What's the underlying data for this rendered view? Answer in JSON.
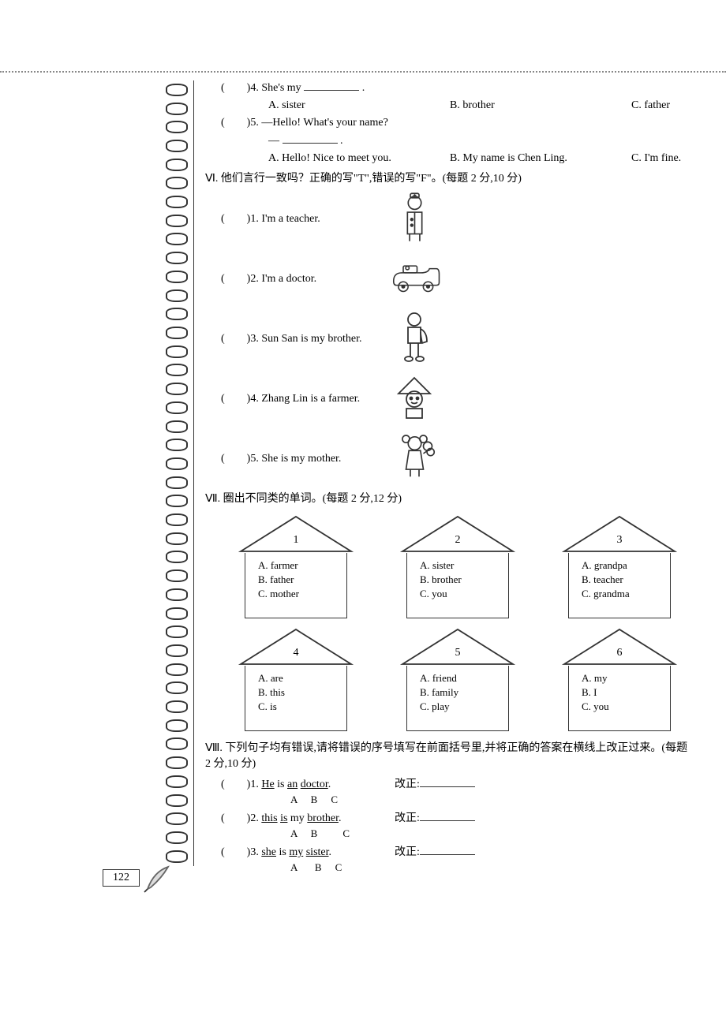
{
  "q4": {
    "prefix": "(　　)4. She's my ",
    "blank": true,
    "period": ".",
    "optA": "A. sister",
    "optB": "B. brother",
    "optC": "C. father"
  },
  "q5": {
    "line1": "(　　)5. —Hello! What's your name?",
    "line2_prefix": "— ",
    "line2_period": ".",
    "optA": "A. Hello! Nice to meet you.",
    "optB": "B. My name is Chen Ling.",
    "optC": "C. I'm fine."
  },
  "sec6": {
    "title": "Ⅵ. 他们言行一致吗？正确的写\"T\",错误的写\"F\"。(每题 2 分,10 分)",
    "items": [
      "(　　)1. I'm a teacher.",
      "(　　)2. I'm a doctor.",
      "(　　)3. Sun San is my brother.",
      "(　　)4. Zhang Lin is a farmer.",
      "(　　)5. She is my mother."
    ]
  },
  "sec7": {
    "title": "Ⅶ. 圈出不同类的单词。(每题 2 分,12 分)",
    "houses": [
      {
        "num": "1",
        "a": "A. farmer",
        "b": "B. father",
        "c": "C. mother"
      },
      {
        "num": "2",
        "a": "A. sister",
        "b": "B. brother",
        "c": "C. you"
      },
      {
        "num": "3",
        "a": "A. grandpa",
        "b": "B. teacher",
        "c": "C. grandma"
      },
      {
        "num": "4",
        "a": "A. are",
        "b": "B. this",
        "c": "C. is"
      },
      {
        "num": "5",
        "a": "A. friend",
        "b": "B. family",
        "c": "C. play"
      },
      {
        "num": "6",
        "a": "A. my",
        "b": "B. I",
        "c": "C. you"
      }
    ]
  },
  "sec8": {
    "title": "Ⅷ. 下列句子均有错误,请将错误的序号填写在前面括号里,并将正确的答案在横线上改正过来。(每题 2 分,10 分)",
    "corr_label": "改正:",
    "items": [
      {
        "num": "(　　)1. ",
        "sentence_html": "<u>He</u> is <u>an</u> <u>doctor</u>.",
        "abc": "A　B　C"
      },
      {
        "num": "(　　)2. ",
        "sentence_html": "<u>this</u> <u>is</u> my <u>brother</u>.",
        "abc": "A　B　　C"
      },
      {
        "num": "(　　)3. ",
        "sentence_html": "<u>she</u> is <u>my</u> <u>sister</u>.",
        "abc": "A　 B　C"
      }
    ]
  },
  "page_number": "122"
}
